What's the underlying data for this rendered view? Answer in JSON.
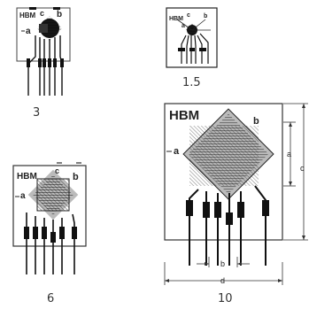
{
  "brand": "HBM",
  "dimension_letters": {
    "a": "a",
    "b": "b",
    "c": "c",
    "d": "d"
  },
  "sizes": [
    {
      "id": "s3",
      "caption": "3"
    },
    {
      "id": "s15",
      "caption": "1.5"
    },
    {
      "id": "s6",
      "caption": "6"
    },
    {
      "id": "s10",
      "caption": "10"
    }
  ]
}
